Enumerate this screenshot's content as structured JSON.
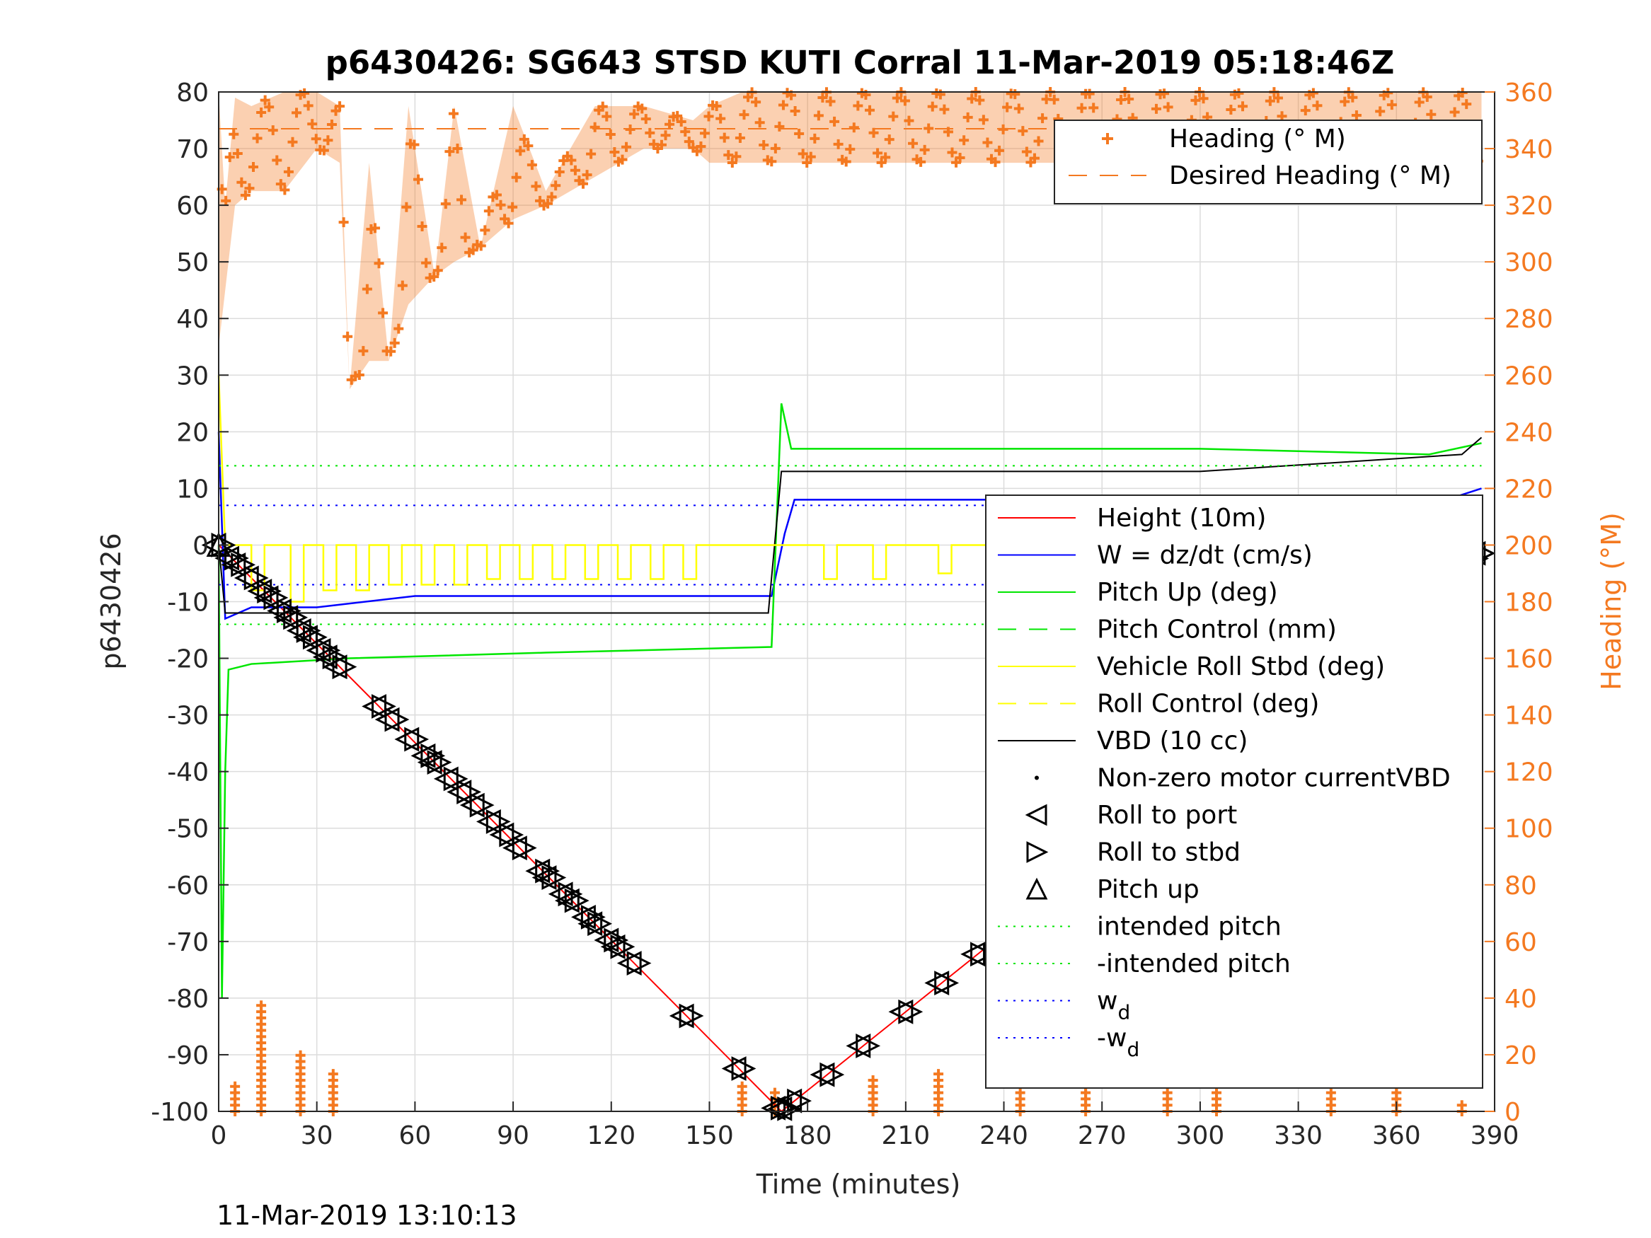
{
  "chart_data": {
    "type": "line",
    "title": "p6430426: SG643 STSD KUTI Corral 11-Mar-2019 05:18:46Z",
    "xlabel": "Time (minutes)",
    "ylabel_left": "p6430426",
    "ylabel_right": "Heading (°M)",
    "xlim": [
      0,
      390
    ],
    "ylim_left": [
      -100,
      80
    ],
    "ylim_right": [
      0,
      360
    ],
    "x_ticks": [
      "0",
      "30",
      "60",
      "90",
      "120",
      "150",
      "180",
      "210",
      "240",
      "270",
      "300",
      "330",
      "360",
      "390"
    ],
    "y_ticks_left": [
      "80",
      "70",
      "60",
      "50",
      "40",
      "30",
      "20",
      "10",
      "0",
      "-10",
      "-20",
      "-30",
      "-40",
      "-50",
      "-60",
      "-70",
      "-80",
      "-90",
      "-100"
    ],
    "y_ticks_right": [
      "360",
      "340",
      "320",
      "300",
      "280",
      "260",
      "240",
      "220",
      "200",
      "180",
      "160",
      "140",
      "120",
      "100",
      "80",
      "60",
      "40",
      "20",
      "0"
    ],
    "grid": true,
    "colors": {
      "heading": "#f47920",
      "height": "#ff0000",
      "w": "#0000ff",
      "pitch": "#00e600",
      "roll": "#ffff00",
      "vbd": "#000000"
    },
    "legend_top": [
      {
        "label": "Heading (° M)",
        "style": "plus-marker",
        "color": "#f47920"
      },
      {
        "label": "Desired Heading (° M)",
        "style": "dashed",
        "color": "#f47920"
      }
    ],
    "legend_main": [
      {
        "label": "Height (10m)",
        "style": "solid",
        "color": "#ff0000"
      },
      {
        "label": "W = dz/dt (cm/s)",
        "style": "solid",
        "color": "#0000ff"
      },
      {
        "label": "Pitch Up (deg)",
        "style": "solid",
        "color": "#00e600"
      },
      {
        "label": "Pitch Control (mm)",
        "style": "dashed",
        "color": "#00e600"
      },
      {
        "label": "Vehicle Roll Stbd (deg)",
        "style": "solid",
        "color": "#ffff00"
      },
      {
        "label": "Roll Control (deg)",
        "style": "dashed",
        "color": "#ffff00"
      },
      {
        "label": "VBD (10 cc)",
        "style": "solid",
        "color": "#000000"
      },
      {
        "label": "Non-zero motor currentVBD",
        "style": "dot",
        "color": "#000000"
      },
      {
        "label": "Roll to port",
        "style": "tri-left",
        "color": "#000000"
      },
      {
        "label": "Roll to stbd",
        "style": "tri-right",
        "color": "#000000"
      },
      {
        "label": "Pitch up",
        "style": "tri-up",
        "color": "#000000"
      },
      {
        "label": "intended pitch",
        "style": "dotted",
        "color": "#00e600"
      },
      {
        "label": "-intended pitch",
        "style": "dotted",
        "color": "#00e600"
      },
      {
        "label": "w_d",
        "style": "dotted",
        "color": "#0000ff"
      },
      {
        "label": "-w_d",
        "style": "dotted",
        "color": "#0000ff"
      }
    ],
    "series": [
      {
        "name": "Height (10m)",
        "axis": "left",
        "x": [
          0,
          172,
          386
        ],
        "y": [
          0,
          -100,
          -1
        ]
      },
      {
        "name": "W = dz/dt (cm/s)",
        "axis": "left",
        "x": [
          0,
          2,
          10,
          30,
          60,
          100,
          140,
          169,
          173,
          176,
          200,
          250,
          300,
          340,
          370,
          386
        ],
        "y": [
          20,
          -13,
          -11,
          -11,
          -9,
          -9,
          -9,
          -9,
          2,
          8,
          8,
          8,
          7,
          7,
          7,
          10
        ]
      },
      {
        "name": "Pitch Up (deg)",
        "axis": "left",
        "x": [
          0,
          1,
          2,
          3,
          10,
          40,
          100,
          169,
          172,
          175,
          180,
          300,
          370,
          386
        ],
        "y": [
          0,
          -80,
          -40,
          -22,
          -21,
          -20,
          -19,
          -18,
          25,
          17,
          17,
          17,
          16,
          18
        ]
      },
      {
        "name": "VBD (10 cc)",
        "axis": "left",
        "x": [
          0,
          2,
          168,
          172,
          300,
          380,
          386
        ],
        "y": [
          0,
          -12,
          -12,
          13,
          13,
          16,
          19
        ]
      },
      {
        "name": "intended pitch",
        "axis": "left",
        "x": [
          0,
          386
        ],
        "y": [
          14,
          14
        ]
      },
      {
        "name": "-intended pitch",
        "axis": "left",
        "x": [
          0,
          386
        ],
        "y": [
          -14,
          -14
        ]
      },
      {
        "name": "w_d",
        "axis": "left",
        "x": [
          0,
          386
        ],
        "y": [
          7,
          7
        ]
      },
      {
        "name": "-w_d",
        "axis": "left",
        "x": [
          0,
          386
        ],
        "y": [
          -7,
          -7
        ]
      },
      {
        "name": "Desired Heading (° M)",
        "axis": "right",
        "x": [
          0,
          386
        ],
        "y": [
          347,
          347
        ]
      }
    ],
    "heading_envelope": {
      "axis": "right",
      "x": [
        0,
        2,
        5,
        10,
        20,
        30,
        37,
        40,
        46,
        52,
        58,
        66,
        72,
        80,
        90,
        100,
        115,
        130,
        145,
        150,
        160,
        170,
        200,
        240,
        280,
        320,
        360,
        386
      ],
      "upper": [
        360,
        320,
        358,
        355,
        360,
        360,
        355,
        255,
        335,
        265,
        355,
        295,
        355,
        305,
        355,
        325,
        355,
        355,
        350,
        355,
        360,
        360,
        360,
        360,
        360,
        360,
        360,
        360
      ],
      "lower": [
        270,
        290,
        320,
        325,
        325,
        340,
        335,
        255,
        265,
        265,
        285,
        295,
        300,
        305,
        315,
        320,
        330,
        340,
        340,
        335,
        335,
        335,
        335,
        335,
        335,
        335,
        335,
        335
      ]
    },
    "heading_wrap_low": {
      "axis": "right",
      "x": [
        5,
        13,
        25,
        35,
        160,
        170,
        200,
        220,
        245,
        265,
        290,
        305,
        340,
        360,
        380
      ],
      "y": [
        10,
        38,
        20,
        15,
        10,
        8,
        12,
        15,
        8,
        10,
        8,
        25,
        8,
        10,
        4
      ]
    },
    "roll_pulses": {
      "axis": "left",
      "x": [
        10,
        22,
        32,
        42,
        52,
        62,
        72,
        82,
        92,
        102,
        112,
        122,
        132,
        142,
        185,
        200,
        220,
        240,
        260,
        280,
        300,
        320,
        340,
        360,
        375
      ],
      "low": [
        -8,
        -10,
        -8,
        -8,
        -7,
        -7,
        -7,
        -6,
        -6,
        -6,
        -6,
        -6,
        -6,
        -6,
        -6,
        -6,
        -5,
        -6,
        -5,
        -5,
        -5,
        -5,
        -6,
        -7,
        -10
      ]
    },
    "markers": {
      "descent_x": [
        0,
        4,
        6,
        10,
        14,
        16,
        20,
        22,
        26,
        28,
        32,
        34,
        37,
        49,
        53,
        59,
        64,
        66,
        71,
        75,
        79,
        84,
        88,
        92,
        99,
        101,
        106,
        108,
        113,
        115,
        120,
        122,
        127,
        143,
        159,
        171
      ],
      "ascent_x": [
        173,
        176,
        186,
        197,
        210,
        221,
        232,
        243,
        254,
        265,
        277,
        288,
        299,
        310,
        321,
        332,
        343,
        349,
        354,
        357,
        366,
        370,
        373,
        377,
        380,
        383,
        385
      ]
    }
  }
}
